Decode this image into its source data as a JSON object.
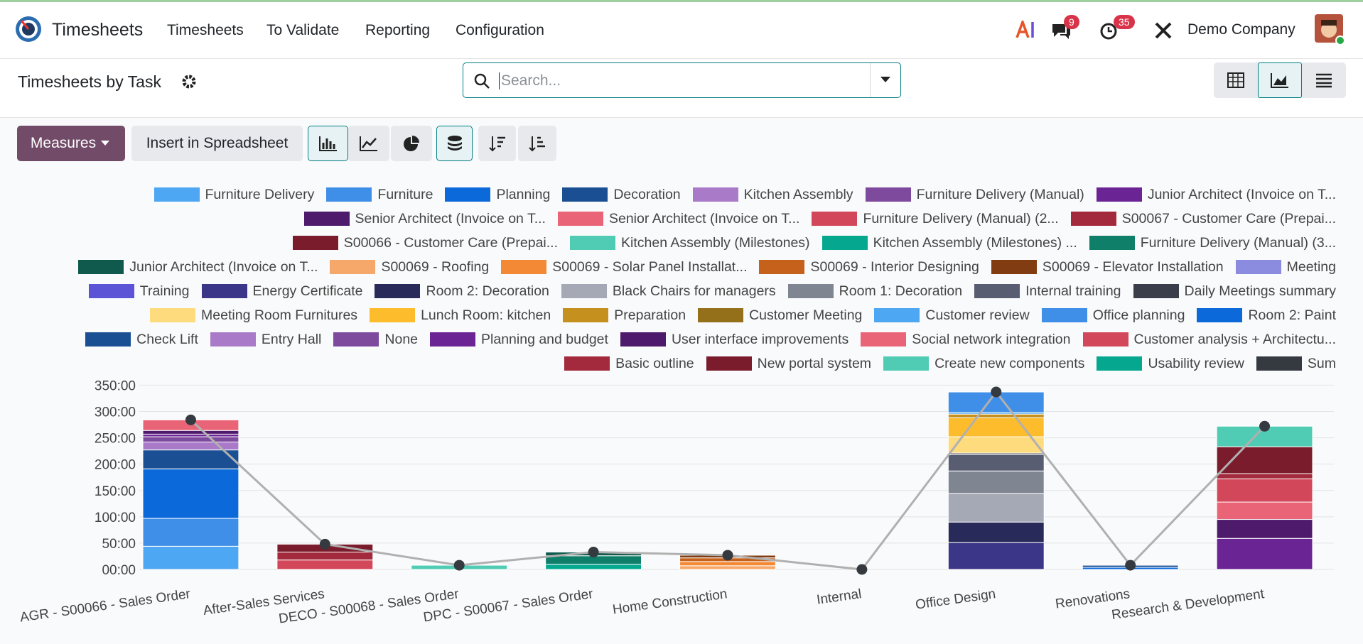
{
  "navbar": {
    "app": "Timesheets",
    "menu": [
      "Timesheets",
      "To Validate",
      "Reporting",
      "Configuration"
    ],
    "messages_badge": 9,
    "activities_badge": 35,
    "company": "Demo Company"
  },
  "control_panel": {
    "title": "Timesheets by Task",
    "search_placeholder": "Search...",
    "measures": "Measures",
    "insert": "Insert in Spreadsheet"
  },
  "chart_data": {
    "type": "bar",
    "stacked": true,
    "grid": true,
    "legend": "top-right",
    "categories": [
      "AGR - S00066 - Sales Order",
      "After-Sales Services",
      "DECO - S00068 - Sales Order",
      "DPC - S00067 - Sales Order",
      "Home Construction",
      "Internal",
      "Office Design",
      "Renovations",
      "Research & Development"
    ],
    "ylim": [
      0,
      360
    ],
    "yticks": [
      {
        "value": 0,
        "label": "00:00"
      },
      {
        "value": 50,
        "label": "50:00"
      },
      {
        "value": 100,
        "label": "100:00"
      },
      {
        "value": 150,
        "label": "150:00"
      },
      {
        "value": 200,
        "label": "200:00"
      },
      {
        "value": 250,
        "label": "250:00"
      },
      {
        "value": 300,
        "label": "300:00"
      },
      {
        "value": 350,
        "label": "350:00"
      }
    ],
    "series": [
      {
        "name": "Furniture Delivery",
        "color": "#4ea7f2",
        "values": [
          44,
          0,
          0,
          0,
          0,
          0,
          0,
          0,
          0
        ]
      },
      {
        "name": "Furniture",
        "color": "#3f8ee8",
        "values": [
          53,
          0,
          0,
          0,
          0,
          0,
          0,
          0,
          0
        ]
      },
      {
        "name": "Planning",
        "color": "#0b69d9",
        "values": [
          94,
          0,
          0,
          0,
          0,
          0,
          0,
          0,
          0
        ]
      },
      {
        "name": "Decoration",
        "color": "#1a4f93",
        "values": [
          36,
          0,
          0,
          0,
          0,
          0,
          0,
          0,
          0
        ]
      },
      {
        "name": "Kitchen Assembly",
        "color": "#a87ac7",
        "values": [
          15,
          0,
          0,
          0,
          0,
          0,
          0,
          0,
          0
        ]
      },
      {
        "name": "Furniture Delivery (Manual)",
        "color": "#7e4a9e",
        "values": [
          10,
          0,
          0,
          0,
          0,
          0,
          0,
          0,
          0
        ]
      },
      {
        "name": "Junior Architect (Invoice on T...",
        "color": "#6b2494",
        "values": [
          5,
          0,
          0,
          0,
          0,
          0,
          0,
          0,
          0
        ]
      },
      {
        "name": "Senior Architect (Invoice on T...",
        "color": "#4e1a6b",
        "values": [
          7,
          0,
          0,
          0,
          0,
          0,
          0,
          0,
          0
        ]
      },
      {
        "name": "Senior Architect (Invoice on T...",
        "color": "#e86476",
        "values": [
          20,
          0,
          0,
          0,
          0,
          0,
          0,
          0,
          0
        ]
      },
      {
        "name": "Furniture Delivery (Manual) (2...",
        "color": "#d24759",
        "values": [
          0,
          18,
          0,
          0,
          0,
          0,
          0,
          0,
          0
        ]
      },
      {
        "name": "S00067 - Customer Care (Prepai...",
        "color": "#a32a3d",
        "values": [
          0,
          15,
          0,
          0,
          0,
          0,
          0,
          0,
          0
        ]
      },
      {
        "name": "S00066 - Customer Care (Prepai...",
        "color": "#7a1c2c",
        "values": [
          0,
          15,
          0,
          0,
          0,
          0,
          0,
          0,
          0
        ]
      },
      {
        "name": "Kitchen Assembly (Milestones)",
        "color": "#4fccb3",
        "values": [
          0,
          0,
          8,
          0,
          0,
          0,
          0,
          0,
          0
        ]
      },
      {
        "name": "Kitchen Assembly (Milestones) ...",
        "color": "#05a88f",
        "values": [
          0,
          0,
          0,
          10,
          0,
          0,
          0,
          0,
          0
        ]
      },
      {
        "name": "Furniture Delivery (Manual) (3...",
        "color": "#107f6a",
        "values": [
          0,
          0,
          0,
          16,
          0,
          0,
          0,
          0,
          0
        ]
      },
      {
        "name": "Junior Architect (Invoice on T...",
        "color": "#0f5a4c",
        "values": [
          0,
          0,
          0,
          7,
          0,
          0,
          0,
          0,
          0
        ]
      },
      {
        "name": "S00069 - Roofing",
        "color": "#f6a86a",
        "values": [
          0,
          0,
          0,
          0,
          7,
          0,
          0,
          0,
          0
        ]
      },
      {
        "name": "S00069 - Solar Panel Installat...",
        "color": "#f48935",
        "values": [
          0,
          0,
          0,
          0,
          8,
          0,
          0,
          0,
          0
        ]
      },
      {
        "name": "S00069 - Interior Designing",
        "color": "#c5611a",
        "values": [
          0,
          0,
          0,
          0,
          7,
          0,
          0,
          0,
          0
        ]
      },
      {
        "name": "S00069 - Elevator Installation",
        "color": "#823c12",
        "values": [
          0,
          0,
          0,
          0,
          5,
          0,
          0,
          0,
          0
        ]
      },
      {
        "name": "Meeting",
        "color": "#8b8bdf",
        "values": [
          0,
          0,
          0,
          0,
          0,
          0,
          0,
          0,
          0
        ]
      },
      {
        "name": "Training",
        "color": "#5b54d6",
        "values": [
          0,
          0,
          0,
          0,
          0,
          0,
          0,
          0,
          0
        ]
      },
      {
        "name": "Energy Certificate",
        "color": "#3b3687",
        "values": [
          0,
          0,
          0,
          0,
          0,
          0,
          51,
          0,
          0
        ]
      },
      {
        "name": "Room 2: Decoration",
        "color": "#282a5a",
        "values": [
          0,
          0,
          0,
          0,
          0,
          0,
          39,
          0,
          0
        ]
      },
      {
        "name": "Black Chairs for managers",
        "color": "#a5a8b5",
        "values": [
          0,
          0,
          0,
          0,
          0,
          0,
          54,
          0,
          0
        ]
      },
      {
        "name": "Room 1: Decoration",
        "color": "#7f8591",
        "values": [
          0,
          0,
          0,
          0,
          0,
          0,
          43,
          0,
          0
        ]
      },
      {
        "name": "Internal training",
        "color": "#585d72",
        "values": [
          0,
          0,
          0,
          0,
          0,
          0,
          31,
          0,
          0
        ]
      },
      {
        "name": "Daily Meetings summary",
        "color": "#3a3e4a",
        "values": [
          0,
          0,
          0,
          0,
          0,
          0,
          3,
          0,
          0
        ]
      },
      {
        "name": "Meeting Room Furnitures",
        "color": "#fedb7c",
        "values": [
          0,
          0,
          0,
          0,
          0,
          0,
          31,
          0,
          0
        ]
      },
      {
        "name": "Lunch Room: kitchen",
        "color": "#fcbc2c",
        "values": [
          0,
          0,
          0,
          0,
          0,
          0,
          36,
          0,
          0
        ]
      },
      {
        "name": "Preparation",
        "color": "#c6901f",
        "values": [
          0,
          0,
          0,
          0,
          0,
          0,
          7,
          0,
          0
        ]
      },
      {
        "name": "Customer Meeting",
        "color": "#94701a",
        "values": [
          0,
          0,
          0,
          0,
          0,
          0,
          0,
          0,
          0
        ]
      },
      {
        "name": "Customer review",
        "color": "#4ea7f2",
        "values": [
          0,
          0,
          0,
          0,
          0,
          0,
          3,
          0,
          0
        ]
      },
      {
        "name": "Office planning",
        "color": "#3f8ee8",
        "values": [
          0,
          0,
          0,
          0,
          0,
          0,
          39,
          0,
          0
        ]
      },
      {
        "name": "Room 2: Paint",
        "color": "#0b69d9",
        "values": [
          0,
          0,
          0,
          0,
          0,
          0,
          0,
          4,
          0
        ]
      },
      {
        "name": "Check Lift",
        "color": "#1a4f93",
        "values": [
          0,
          0,
          0,
          0,
          0,
          0,
          0,
          4,
          0
        ]
      },
      {
        "name": "Entry Hall",
        "color": "#a87ac7",
        "values": [
          0,
          0,
          0,
          0,
          0,
          0,
          0,
          0,
          0
        ]
      },
      {
        "name": "None",
        "color": "#7e4a9e",
        "values": [
          0,
          0,
          0,
          0,
          0,
          0,
          0,
          0,
          0
        ]
      },
      {
        "name": "Planning and budget",
        "color": "#6b2494",
        "values": [
          0,
          0,
          0,
          0,
          0,
          0,
          0,
          0,
          59
        ]
      },
      {
        "name": "User interface improvements",
        "color": "#4e1a6b",
        "values": [
          0,
          0,
          0,
          0,
          0,
          0,
          0,
          0,
          36
        ]
      },
      {
        "name": "Social network integration",
        "color": "#e86476",
        "values": [
          0,
          0,
          0,
          0,
          0,
          0,
          0,
          0,
          33
        ]
      },
      {
        "name": "Customer analysis + Architectu...",
        "color": "#d24759",
        "values": [
          0,
          0,
          0,
          0,
          0,
          0,
          0,
          0,
          44
        ]
      },
      {
        "name": "Basic outline",
        "color": "#a32a3d",
        "values": [
          0,
          0,
          0,
          0,
          0,
          0,
          0,
          0,
          10
        ]
      },
      {
        "name": "New portal system",
        "color": "#7a1c2c",
        "values": [
          0,
          0,
          0,
          0,
          0,
          0,
          0,
          0,
          51
        ]
      },
      {
        "name": "Create new components",
        "color": "#4fccb3",
        "values": [
          0,
          0,
          0,
          0,
          0,
          0,
          0,
          0,
          39
        ]
      },
      {
        "name": "Usability review",
        "color": "#05a88f",
        "values": [
          0,
          0,
          0,
          0,
          0,
          0,
          0,
          0,
          0
        ]
      },
      {
        "name": "Sum",
        "type": "line",
        "color": "#343a40",
        "line_color": "#b0b0b0",
        "values": [
          284,
          48,
          8,
          33,
          27,
          0,
          337,
          8,
          272
        ]
      }
    ]
  }
}
